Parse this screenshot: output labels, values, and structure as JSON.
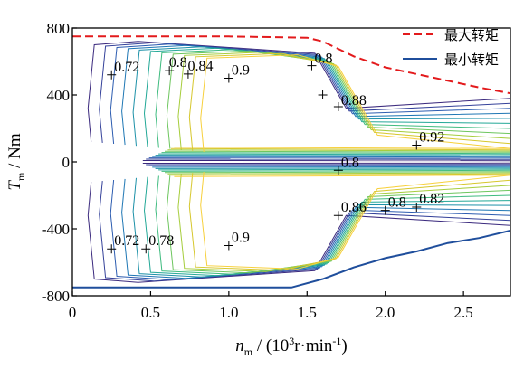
{
  "chart_data": {
    "type": "line",
    "xlabel": {
      "main": "n",
      "sub": "m",
      "rest": " / (10",
      "sup": "3",
      "rest2": "r·min",
      "sup2": "-1",
      "rest3": ")"
    },
    "ylabel": {
      "main": "T",
      "sub": "m",
      "rest": " / Nm"
    },
    "xlim": [
      0,
      2.8
    ],
    "ylim": [
      -800,
      800
    ],
    "x_ticks": [
      0,
      0.5,
      1.0,
      1.5,
      2.0,
      2.5
    ],
    "x_tick_labels": [
      "0",
      "0.5",
      "1.0",
      "1.5",
      "2.0",
      "2.5"
    ],
    "y_ticks": [
      800,
      400,
      0,
      -400,
      -800
    ],
    "y_tick_labels": [
      "800",
      "400",
      "0",
      "-400",
      "-800"
    ],
    "legend": {
      "placement": "top-right",
      "entries": [
        {
          "name": "最大转矩",
          "style": "dashed",
          "color": "#e31a1c"
        },
        {
          "name": "最小转矩",
          "style": "solid",
          "color": "#1f4e9c"
        }
      ]
    },
    "series": [
      {
        "name": "最大转矩",
        "color": "#e31a1c",
        "dash": true,
        "points": [
          [
            0,
            750
          ],
          [
            0.5,
            750
          ],
          [
            1.0,
            750
          ],
          [
            1.5,
            742
          ],
          [
            1.6,
            720
          ],
          [
            1.8,
            630
          ],
          [
            2.0,
            565
          ],
          [
            2.2,
            525
          ],
          [
            2.4,
            485
          ],
          [
            2.6,
            445
          ],
          [
            2.8,
            410
          ]
        ]
      },
      {
        "name": "最小转矩",
        "color": "#1f4e9c",
        "dash": false,
        "points": [
          [
            0,
            -750
          ],
          [
            0.5,
            -750
          ],
          [
            1.0,
            -750
          ],
          [
            1.4,
            -750
          ],
          [
            1.6,
            -700
          ],
          [
            1.8,
            -630
          ],
          [
            2.0,
            -575
          ],
          [
            2.2,
            -535
          ],
          [
            2.4,
            -485
          ],
          [
            2.6,
            -455
          ],
          [
            2.8,
            -410
          ]
        ]
      }
    ],
    "contour_labels": [
      {
        "text": "0.72",
        "x": 0.25,
        "y": 520
      },
      {
        "text": "0.8",
        "x": 0.6,
        "y": 545
      },
      {
        "text": "0.84",
        "x": 0.72,
        "y": 525
      },
      {
        "text": "0.9",
        "x": 1.0,
        "y": 500
      },
      {
        "text": "0.8",
        "x": 1.53,
        "y": 570
      },
      {
        "text": "0.88",
        "x": 1.7,
        "y": 320
      },
      {
        "text": "0.92",
        "x": 2.2,
        "y": 100
      },
      {
        "text": "0.8",
        "x": 1.7,
        "y": -50
      },
      {
        "text": "0.86",
        "x": 1.7,
        "y": -320
      },
      {
        "text": "0.8",
        "x": 2.0,
        "y": -290
      },
      {
        "text": "0.82",
        "x": 2.2,
        "y": -270
      },
      {
        "text": "0.72",
        "x": 0.25,
        "y": -520
      },
      {
        "text": "0.78",
        "x": 0.47,
        "y": -520
      },
      {
        "text": "0.9",
        "x": 1.0,
        "y": -500
      }
    ],
    "markers": [
      {
        "x": 0.25,
        "y": 520
      },
      {
        "x": 0.62,
        "y": 545
      },
      {
        "x": 0.74,
        "y": 525
      },
      {
        "x": 1.0,
        "y": 500
      },
      {
        "x": 1.53,
        "y": 575
      },
      {
        "x": 1.6,
        "y": 400
      },
      {
        "x": 1.7,
        "y": 330
      },
      {
        "x": 2.2,
        "y": 100
      },
      {
        "x": 1.7,
        "y": -50
      },
      {
        "x": 1.7,
        "y": -320
      },
      {
        "x": 2.0,
        "y": -290
      },
      {
        "x": 2.2,
        "y": -270
      },
      {
        "x": 0.25,
        "y": -520
      },
      {
        "x": 0.47,
        "y": -520
      },
      {
        "x": 1.0,
        "y": -500
      }
    ],
    "contour_colors": [
      "#3b2a7e",
      "#35429a",
      "#2c5cb0",
      "#1f77b4",
      "#1d91a8",
      "#23a897",
      "#3fbb7f",
      "#6ec65f",
      "#a6cd3c",
      "#d6c72d",
      "#f7d03c"
    ]
  }
}
